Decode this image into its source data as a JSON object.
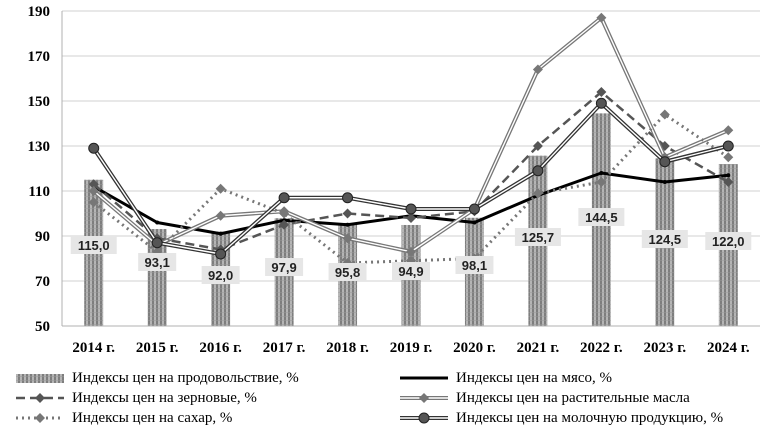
{
  "chart_data": {
    "type": "bar+line",
    "title": "",
    "xlabel": "",
    "ylabel": "",
    "ylim": [
      50,
      190
    ],
    "yticks": [
      "50",
      "70",
      "90",
      "110",
      "130",
      "150",
      "170",
      "190"
    ],
    "categories": [
      "2014 г.",
      "2015 г.",
      "2016 г.",
      "2017 г.",
      "2018 г.",
      "2019 г.",
      "2020 г.",
      "2021 г.",
      "2022 г.",
      "2023 г.",
      "2024 г."
    ],
    "grid": "horizontal",
    "legend_position": "bottom",
    "bar_series": {
      "name": "Индексы цен на продовольствие, %",
      "values": [
        115.0,
        93.1,
        92.0,
        97.9,
        95.8,
        94.9,
        98.1,
        125.7,
        144.5,
        124.5,
        122.0
      ],
      "labels": [
        "115,0",
        "93,1",
        "92,0",
        "97,9",
        "95,8",
        "94,9",
        "98,1",
        "125,7",
        "144,5",
        "124,5",
        "122,0"
      ]
    },
    "line_series": [
      {
        "name": "Индексы цен на мясо, %",
        "values": [
          112,
          96,
          91,
          97,
          95,
          99,
          96,
          108,
          118,
          114,
          117
        ]
      },
      {
        "name": "Индексы цен на зерновые, %",
        "values": [
          113,
          89,
          84,
          95,
          100,
          98,
          101,
          130,
          154,
          130,
          114
        ]
      },
      {
        "name": "Индексы цен на растительные масла",
        "values": [
          110,
          86,
          99,
          101,
          89,
          83,
          102,
          164,
          187,
          125,
          137
        ]
      },
      {
        "name": "Индексы цен на сахар, %",
        "values": [
          105,
          83,
          111,
          100,
          78,
          79,
          80,
          109,
          114,
          144,
          125
        ]
      },
      {
        "name": "Индексы цен на молочную продукцию, %",
        "values": [
          129,
          87,
          82,
          107,
          107,
          102,
          102,
          119,
          149,
          123,
          130
        ]
      }
    ]
  },
  "colors": {
    "bar_fill": "#9a9a9a",
    "meat": "#000000",
    "grain": "#555555",
    "oil": "#777777",
    "sugar": "#777777",
    "dairy": "#333333",
    "grid": "#d0d0d0",
    "axis": "#b0b0b0"
  }
}
